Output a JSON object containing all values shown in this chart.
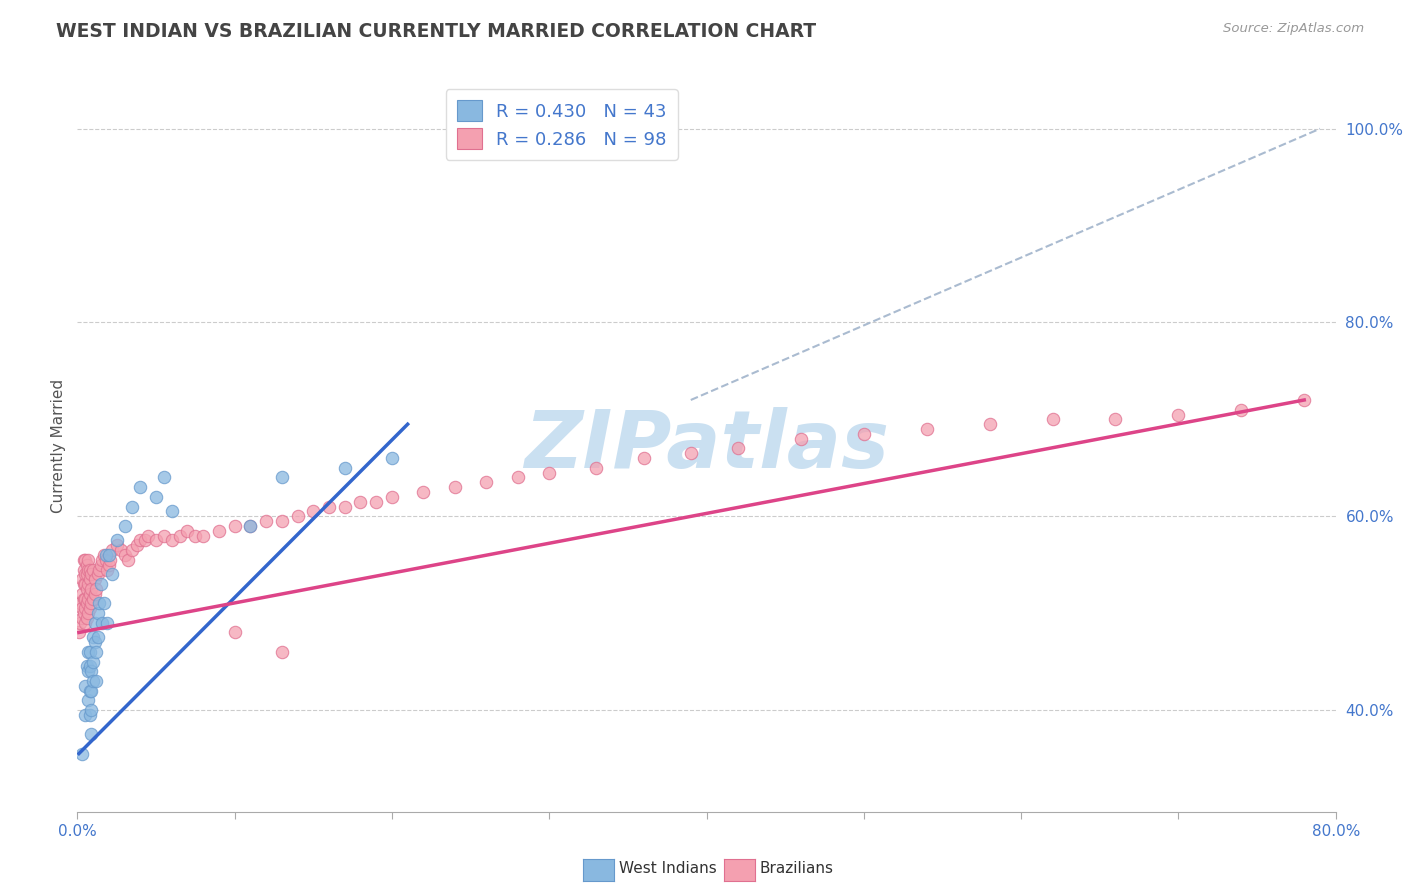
{
  "title": "WEST INDIAN VS BRAZILIAN CURRENTLY MARRIED CORRELATION CHART",
  "source_text": "Source: ZipAtlas.com",
  "ylabel": "Currently Married",
  "ylabel_right_labels": [
    "40.0%",
    "60.0%",
    "80.0%",
    "100.0%"
  ],
  "ylabel_right_values": [
    0.4,
    0.6,
    0.8,
    1.0
  ],
  "xlim": [
    0.0,
    0.8
  ],
  "ylim": [
    0.295,
    1.05
  ],
  "west_indian_color": "#89b8e0",
  "west_indian_edge": "#6699cc",
  "brazilian_color": "#f4a0b0",
  "brazilian_edge": "#e07090",
  "west_indian_line_color": "#3366cc",
  "brazilian_line_color": "#dd4488",
  "dash_color": "#aabbd0",
  "west_indian_R": 0.43,
  "west_indian_N": 43,
  "brazilian_R": 0.286,
  "brazilian_N": 98,
  "background_color": "#ffffff",
  "grid_color": "#cccccc",
  "watermark_text": "ZIPatlas",
  "watermark_color": "#c5ddf0",
  "title_color": "#444444",
  "legend_text_color": "#4477cc",
  "west_indian_line_x": [
    0.001,
    0.21
  ],
  "west_indian_line_y": [
    0.355,
    0.695
  ],
  "brazilian_line_x": [
    0.001,
    0.78
  ],
  "brazilian_line_y": [
    0.48,
    0.72
  ],
  "dash_line_x": [
    0.39,
    0.79
  ],
  "dash_line_y": [
    0.72,
    1.0
  ],
  "wi_x": [
    0.003,
    0.005,
    0.005,
    0.006,
    0.007,
    0.007,
    0.007,
    0.008,
    0.008,
    0.008,
    0.008,
    0.009,
    0.009,
    0.009,
    0.009,
    0.01,
    0.01,
    0.01,
    0.011,
    0.011,
    0.012,
    0.012,
    0.013,
    0.013,
    0.014,
    0.015,
    0.016,
    0.017,
    0.018,
    0.019,
    0.02,
    0.022,
    0.025,
    0.03,
    0.035,
    0.04,
    0.05,
    0.055,
    0.06,
    0.11,
    0.13,
    0.17,
    0.2
  ],
  "wi_y": [
    0.355,
    0.425,
    0.395,
    0.445,
    0.41,
    0.44,
    0.46,
    0.395,
    0.42,
    0.445,
    0.46,
    0.375,
    0.4,
    0.42,
    0.44,
    0.45,
    0.475,
    0.43,
    0.47,
    0.49,
    0.43,
    0.46,
    0.5,
    0.475,
    0.51,
    0.53,
    0.49,
    0.51,
    0.56,
    0.49,
    0.56,
    0.54,
    0.575,
    0.59,
    0.61,
    0.63,
    0.62,
    0.64,
    0.605,
    0.59,
    0.64,
    0.65,
    0.66
  ],
  "br_x": [
    0.001,
    0.002,
    0.002,
    0.003,
    0.003,
    0.003,
    0.003,
    0.004,
    0.004,
    0.004,
    0.004,
    0.004,
    0.005,
    0.005,
    0.005,
    0.005,
    0.005,
    0.005,
    0.006,
    0.006,
    0.006,
    0.006,
    0.006,
    0.007,
    0.007,
    0.007,
    0.007,
    0.007,
    0.008,
    0.008,
    0.008,
    0.008,
    0.009,
    0.009,
    0.009,
    0.01,
    0.01,
    0.011,
    0.011,
    0.012,
    0.013,
    0.014,
    0.015,
    0.016,
    0.017,
    0.018,
    0.019,
    0.02,
    0.021,
    0.022,
    0.025,
    0.028,
    0.03,
    0.032,
    0.035,
    0.038,
    0.04,
    0.043,
    0.045,
    0.05,
    0.055,
    0.06,
    0.065,
    0.07,
    0.075,
    0.08,
    0.09,
    0.1,
    0.11,
    0.12,
    0.13,
    0.14,
    0.15,
    0.16,
    0.17,
    0.18,
    0.19,
    0.2,
    0.22,
    0.24,
    0.26,
    0.28,
    0.3,
    0.33,
    0.36,
    0.39,
    0.42,
    0.46,
    0.5,
    0.54,
    0.58,
    0.62,
    0.66,
    0.7,
    0.74,
    0.78,
    0.1,
    0.13
  ],
  "br_y": [
    0.48,
    0.49,
    0.51,
    0.495,
    0.505,
    0.52,
    0.535,
    0.5,
    0.515,
    0.53,
    0.545,
    0.555,
    0.49,
    0.505,
    0.515,
    0.53,
    0.54,
    0.555,
    0.495,
    0.51,
    0.525,
    0.54,
    0.55,
    0.5,
    0.515,
    0.53,
    0.545,
    0.555,
    0.505,
    0.52,
    0.535,
    0.545,
    0.51,
    0.525,
    0.54,
    0.515,
    0.545,
    0.52,
    0.535,
    0.525,
    0.54,
    0.545,
    0.55,
    0.555,
    0.56,
    0.555,
    0.545,
    0.55,
    0.555,
    0.565,
    0.57,
    0.565,
    0.56,
    0.555,
    0.565,
    0.57,
    0.575,
    0.575,
    0.58,
    0.575,
    0.58,
    0.575,
    0.58,
    0.585,
    0.58,
    0.58,
    0.585,
    0.59,
    0.59,
    0.595,
    0.595,
    0.6,
    0.605,
    0.61,
    0.61,
    0.615,
    0.615,
    0.62,
    0.625,
    0.63,
    0.635,
    0.64,
    0.645,
    0.65,
    0.66,
    0.665,
    0.67,
    0.68,
    0.685,
    0.69,
    0.695,
    0.7,
    0.7,
    0.705,
    0.71,
    0.72,
    0.48,
    0.46
  ]
}
